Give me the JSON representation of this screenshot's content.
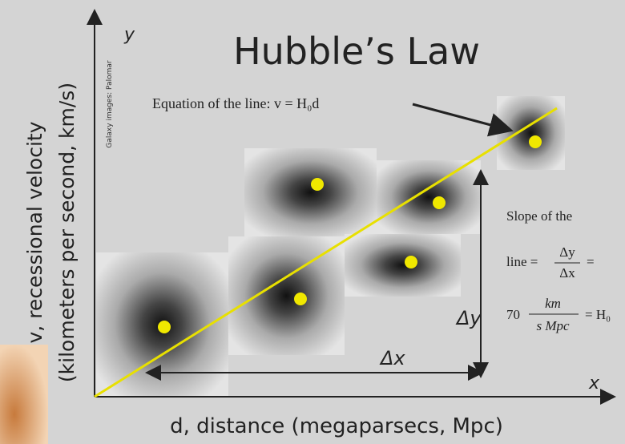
{
  "title": "Hubble’s Law",
  "axes": {
    "y_letter": "y",
    "x_letter": "x",
    "y_label": [
      "v, recessional velocity",
      "(kilometers per second, km/s)"
    ],
    "x_label": "d, distance (megaparsecs, Mpc)"
  },
  "credit": "Galaxy images: Palomar",
  "equation": "Equation of the line: v = H₀d",
  "slope": {
    "line1": "Slope of the",
    "line2": "line =",
    "numerator": "Δy",
    "denominator": "Δx",
    "equals": "=",
    "value": "70",
    "unit_top": "km",
    "unit_bottom": "s Mpc",
    "result": "= H₀"
  },
  "delta": {
    "dy": "Δy",
    "dx": "Δx"
  }
}
